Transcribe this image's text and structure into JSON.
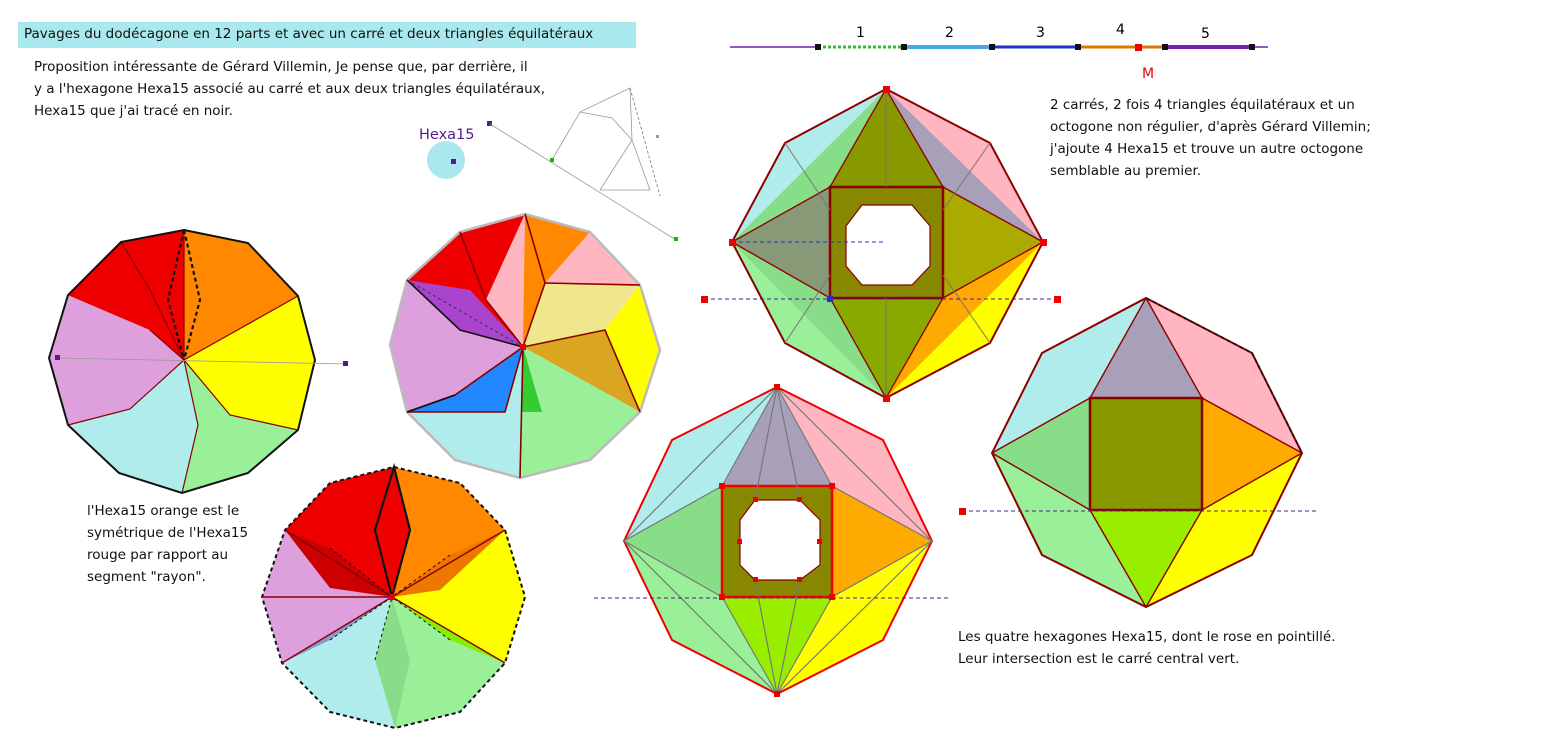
{
  "title": "Pavages du dodécagone en 12 parts et avec un carré et deux triangles équilatéraux",
  "intro": "Proposition intéressante de Gérard Villemin, Je pense que, par derrière, il\ny a l'hexagone Hexa15 associé au carré et aux deux triangles équilatéraux,\n Hexa15 que j'ai tracé en noir.",
  "hexa_label": "Hexa15",
  "note_octagon": "2 carrés, 2 fois 4 triangles équilatéraux et un\noctogone non régulier, d'après Gérard Villemin;\nj'ajoute 4 Hexa15 et trouve un autre octogone\nsemblable au premier.",
  "note_symmetry": "l'Hexa15 orange est le\nsymétrique de l'Hexa15\nrouge par rapport au\nsegment \"rayon\".",
  "note_intersection": "Les quatre hexagones Hexa15, dont le rose en pointillé.\nLeur intersection est le carré central vert.",
  "slider": {
    "labels": [
      "1",
      "2",
      "3",
      "4",
      "5"
    ],
    "point_label": "M",
    "colors": [
      "#33bb33",
      "#44aaee",
      "#2233cc",
      "#dd7700",
      "#7722aa"
    ]
  },
  "colors": {
    "red": "#ee0000",
    "orange": "#ff8800",
    "yellow": "#ffff00",
    "green": "#99f099",
    "cyan": "#b0ecec",
    "violet": "#dda0dd",
    "pink": "#ffb6c1",
    "grey": "#a8a0b8",
    "olive": "#889900",
    "outline": "#8b0000",
    "title_bg": "#a9e8ec"
  }
}
